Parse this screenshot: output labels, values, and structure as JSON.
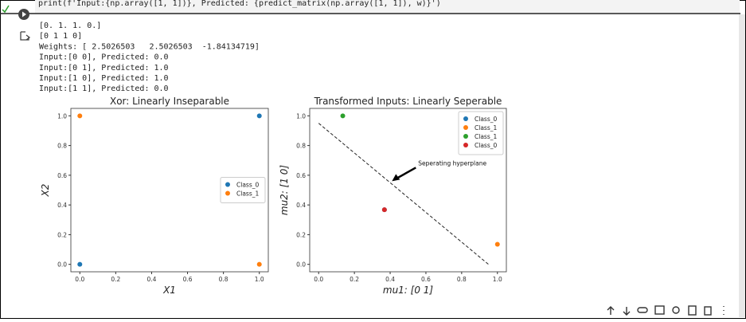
{
  "code": "print(f'Input:{np.array([1, 1])}, Predicted: {predict_matrix(np.array([1, 1]), w)}')",
  "output_lines": [
    "[0. 1. 1. 0.]",
    "[0 1 1 0]",
    "Weights: [ 2.5026503   2.5026503  -1.84134719]",
    "Input:[0 0], Predicted: 0.0",
    "Input:[0 1], Predicted: 1.0",
    "Input:[1 0], Predicted: 1.0",
    "Input:[1 1], Predicted: 0.0"
  ],
  "chart_data": [
    {
      "type": "scatter",
      "title": "Xor: Linearly Inseparable",
      "x_label": "X1",
      "y_label": "X2",
      "xlim": [
        -0.05,
        1.05
      ],
      "ylim": [
        -0.05,
        1.05
      ],
      "xticks": [
        {
          "value": 0,
          "label": "0.0"
        },
        0.2,
        0.4,
        0.6,
        0.8,
        {
          "value": 1,
          "label": "1.0"
        }
      ],
      "yticks": [
        {
          "value": 0,
          "label": "0.0"
        },
        0.2,
        0.4,
        0.6,
        0.8,
        {
          "value": 1,
          "label": "1.0"
        }
      ],
      "legend": "center right",
      "series": [
        {
          "name": "Class_0",
          "color": "#1f77b4",
          "x": [
            0,
            1
          ],
          "values": [
            0,
            1
          ]
        },
        {
          "name": "Class_1",
          "color": "#ff7f0e",
          "x": [
            0,
            1
          ],
          "values": [
            1,
            0
          ]
        }
      ]
    },
    {
      "type": "scatter",
      "title": "Transformed Inputs: Linearly Seperable",
      "x_label": "mu1: [0 1]",
      "y_label": "mu2: [1 0]",
      "xlim": [
        -0.05,
        1.05
      ],
      "ylim": [
        -0.05,
        1.05
      ],
      "xticks": [
        {
          "value": 0,
          "label": "0.0"
        },
        0.2,
        0.4,
        0.6,
        0.8,
        {
          "value": 1,
          "label": "1.0"
        }
      ],
      "yticks": [
        {
          "value": 0,
          "label": "0.0"
        },
        0.2,
        0.4,
        0.6,
        0.8,
        {
          "value": 1,
          "label": "1.0"
        }
      ],
      "legend": "upper right",
      "series": [
        {
          "name": "Class_0",
          "color": "#1f77b4",
          "x": [
            0.368
          ],
          "values": [
            0.368
          ]
        },
        {
          "name": "Class_1",
          "color": "#ff7f0e",
          "x": [
            1.0
          ],
          "values": [
            0.135
          ]
        },
        {
          "name": "Class_1",
          "color": "#2ca02c",
          "x": [
            0.135
          ],
          "values": [
            1.0
          ]
        },
        {
          "name": "Class_0",
          "color": "#d62728",
          "x": [
            0.368
          ],
          "values": [
            0.368
          ]
        }
      ],
      "line": {
        "x": [
          0,
          0.95
        ],
        "values": [
          0.95,
          0
        ]
      },
      "annotation": {
        "text": "Seperating hyperplane",
        "x": 0.41,
        "y": 0.56
      }
    }
  ]
}
